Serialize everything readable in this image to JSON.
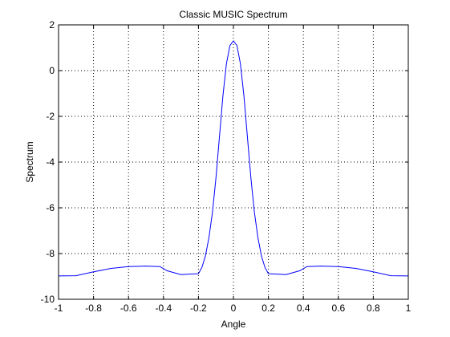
{
  "chart_data": {
    "type": "line",
    "title": "Classic MUSIC Spectrum",
    "xlabel": "Angle",
    "ylabel": "Spectrum",
    "xlim": [
      -1,
      1
    ],
    "ylim": [
      -10,
      2
    ],
    "grid": true,
    "x_ticks": [
      -1,
      -0.8,
      -0.6,
      -0.4,
      -0.2,
      0,
      0.2,
      0.4,
      0.6,
      0.8,
      1
    ],
    "x_tick_labels": [
      "-1",
      "-0.8",
      "-0.6",
      "-0.4",
      "-0.2",
      "0",
      "0.2",
      "0.4",
      "0.6",
      "0.8",
      "1"
    ],
    "y_ticks": [
      -10,
      -8,
      -6,
      -4,
      -2,
      0,
      2
    ],
    "y_tick_labels": [
      "-10",
      "-8",
      "-6",
      "-4",
      "-2",
      "0",
      "2"
    ],
    "series": [
      {
        "color": "#0000ff",
        "x": [
          -1.0,
          -0.9,
          -0.8,
          -0.7,
          -0.6,
          -0.5,
          -0.42,
          -0.38,
          -0.3,
          -0.25,
          -0.2,
          -0.18,
          -0.16,
          -0.14,
          -0.12,
          -0.1,
          -0.08,
          -0.06,
          -0.04,
          -0.02,
          0.0,
          0.02,
          0.04,
          0.06,
          0.08,
          0.1,
          0.12,
          0.14,
          0.16,
          0.18,
          0.2,
          0.25,
          0.3,
          0.38,
          0.42,
          0.5,
          0.6,
          0.7,
          0.8,
          0.9,
          1.0
        ],
        "y": [
          -8.98,
          -8.97,
          -8.8,
          -8.65,
          -8.57,
          -8.55,
          -8.57,
          -8.75,
          -8.92,
          -8.9,
          -8.88,
          -8.6,
          -8.1,
          -7.3,
          -6.2,
          -4.7,
          -2.9,
          -1.1,
          0.3,
          1.1,
          1.3,
          1.1,
          0.3,
          -1.1,
          -2.9,
          -4.7,
          -6.2,
          -7.3,
          -8.1,
          -8.6,
          -8.88,
          -8.9,
          -8.92,
          -8.75,
          -8.57,
          -8.55,
          -8.57,
          -8.65,
          -8.8,
          -8.97,
          -8.98
        ]
      }
    ]
  }
}
